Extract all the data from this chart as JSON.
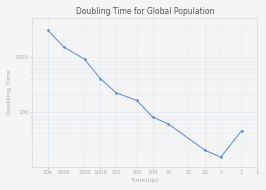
{
  "title": "Doubling Time for Global Population",
  "xlabel": "Time(bp)",
  "ylabel": "Doubling Time",
  "x_values": [
    10000,
    5000,
    2000,
    1000,
    500,
    200,
    100,
    50,
    10,
    5,
    2
  ],
  "y_values": [
    3000,
    1500,
    900,
    400,
    220,
    160,
    80,
    60,
    20,
    15,
    45
  ],
  "line_color": "#5588cc",
  "marker": "o",
  "marker_size": 1.5,
  "line_width": 0.7,
  "background_color": "#f5f5f5",
  "plot_bg_color": "#f5f5f5",
  "grid_color": "#d8e4f0",
  "title_fontsize": 5.5,
  "label_fontsize": 4.5,
  "tick_fontsize": 4.0,
  "tick_color": "#aaaaaa",
  "label_color": "#aaaaaa",
  "title_color": "#555555"
}
